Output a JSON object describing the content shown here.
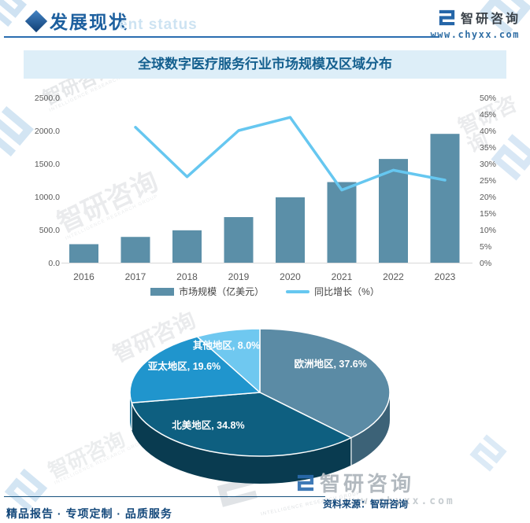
{
  "header": {
    "section_title": "发展现状",
    "section_title_watermark": "ent status",
    "brand": {
      "name": "智研咨询",
      "url": "www.chyxx.com"
    }
  },
  "watermark": {
    "brand": "智研咨询",
    "group": "INTELLIGENCE RESEARCH GROUP"
  },
  "chart_title": "全球数字医疗服务行业市场规模及区域分布",
  "chart_data": [
    {
      "type": "bar",
      "subtype": "bar+line combo, dual axis",
      "categories": [
        "2016",
        "2017",
        "2018",
        "2019",
        "2020",
        "2021",
        "2022",
        "2023"
      ],
      "series": [
        {
          "name": "市场规模（亿美元）",
          "kind": "bar",
          "axis": "left",
          "color": "#5b8fa8",
          "values": [
            280,
            390,
            490,
            690,
            990,
            1220,
            1570,
            1950
          ]
        },
        {
          "name": "同比增长（%）",
          "kind": "line",
          "axis": "right",
          "color": "#66c7f0",
          "values": [
            null,
            41,
            26,
            40,
            44,
            22,
            28,
            25
          ]
        }
      ],
      "left_axis": {
        "min": 0,
        "max": 2500,
        "ticks": [
          "0.0",
          "500.0",
          "1000.0",
          "1500.0",
          "2000.0",
          "2500.0"
        ]
      },
      "right_axis": {
        "min": 0,
        "max": 50,
        "ticks": [
          "0%",
          "5%",
          "10%",
          "15%",
          "20%",
          "25%",
          "30%",
          "35%",
          "40%",
          "45%",
          "50%"
        ]
      },
      "grid": "baseline only",
      "legend_position": "bottom"
    },
    {
      "type": "pie",
      "style": "3d",
      "direction": "clockwise",
      "start_angle_deg": 0,
      "labels": [
        "欧洲地区",
        "北美地区",
        "亚太地区",
        "其他地区"
      ],
      "values": [
        37.6,
        34.8,
        19.6,
        8.0
      ],
      "label_texts": [
        "欧洲地区, 37.6%",
        "北美地区, 34.8%",
        "亚太地区, 19.6%",
        "其他地区, 8.0%"
      ],
      "colors": [
        "#5b8ba5",
        "#0e5f80",
        "#2095cd",
        "#6fc8f0"
      ],
      "side_colors": [
        "#3c6277",
        "#093b50",
        "#11719b",
        "#4da9d4"
      ]
    }
  ],
  "source": "资料来源：智研咨询",
  "source_watermark": "www.chyxx.com",
  "footer": "精品报告 · 专项定制 · 品质服务",
  "colors": {
    "accent_blue": "#1c5f9e",
    "title_bar_bg": "#ddeef8",
    "title_text": "#15608f",
    "bar": "#5b8fa8",
    "line": "#66c7f0",
    "axis_text": "#595959"
  }
}
